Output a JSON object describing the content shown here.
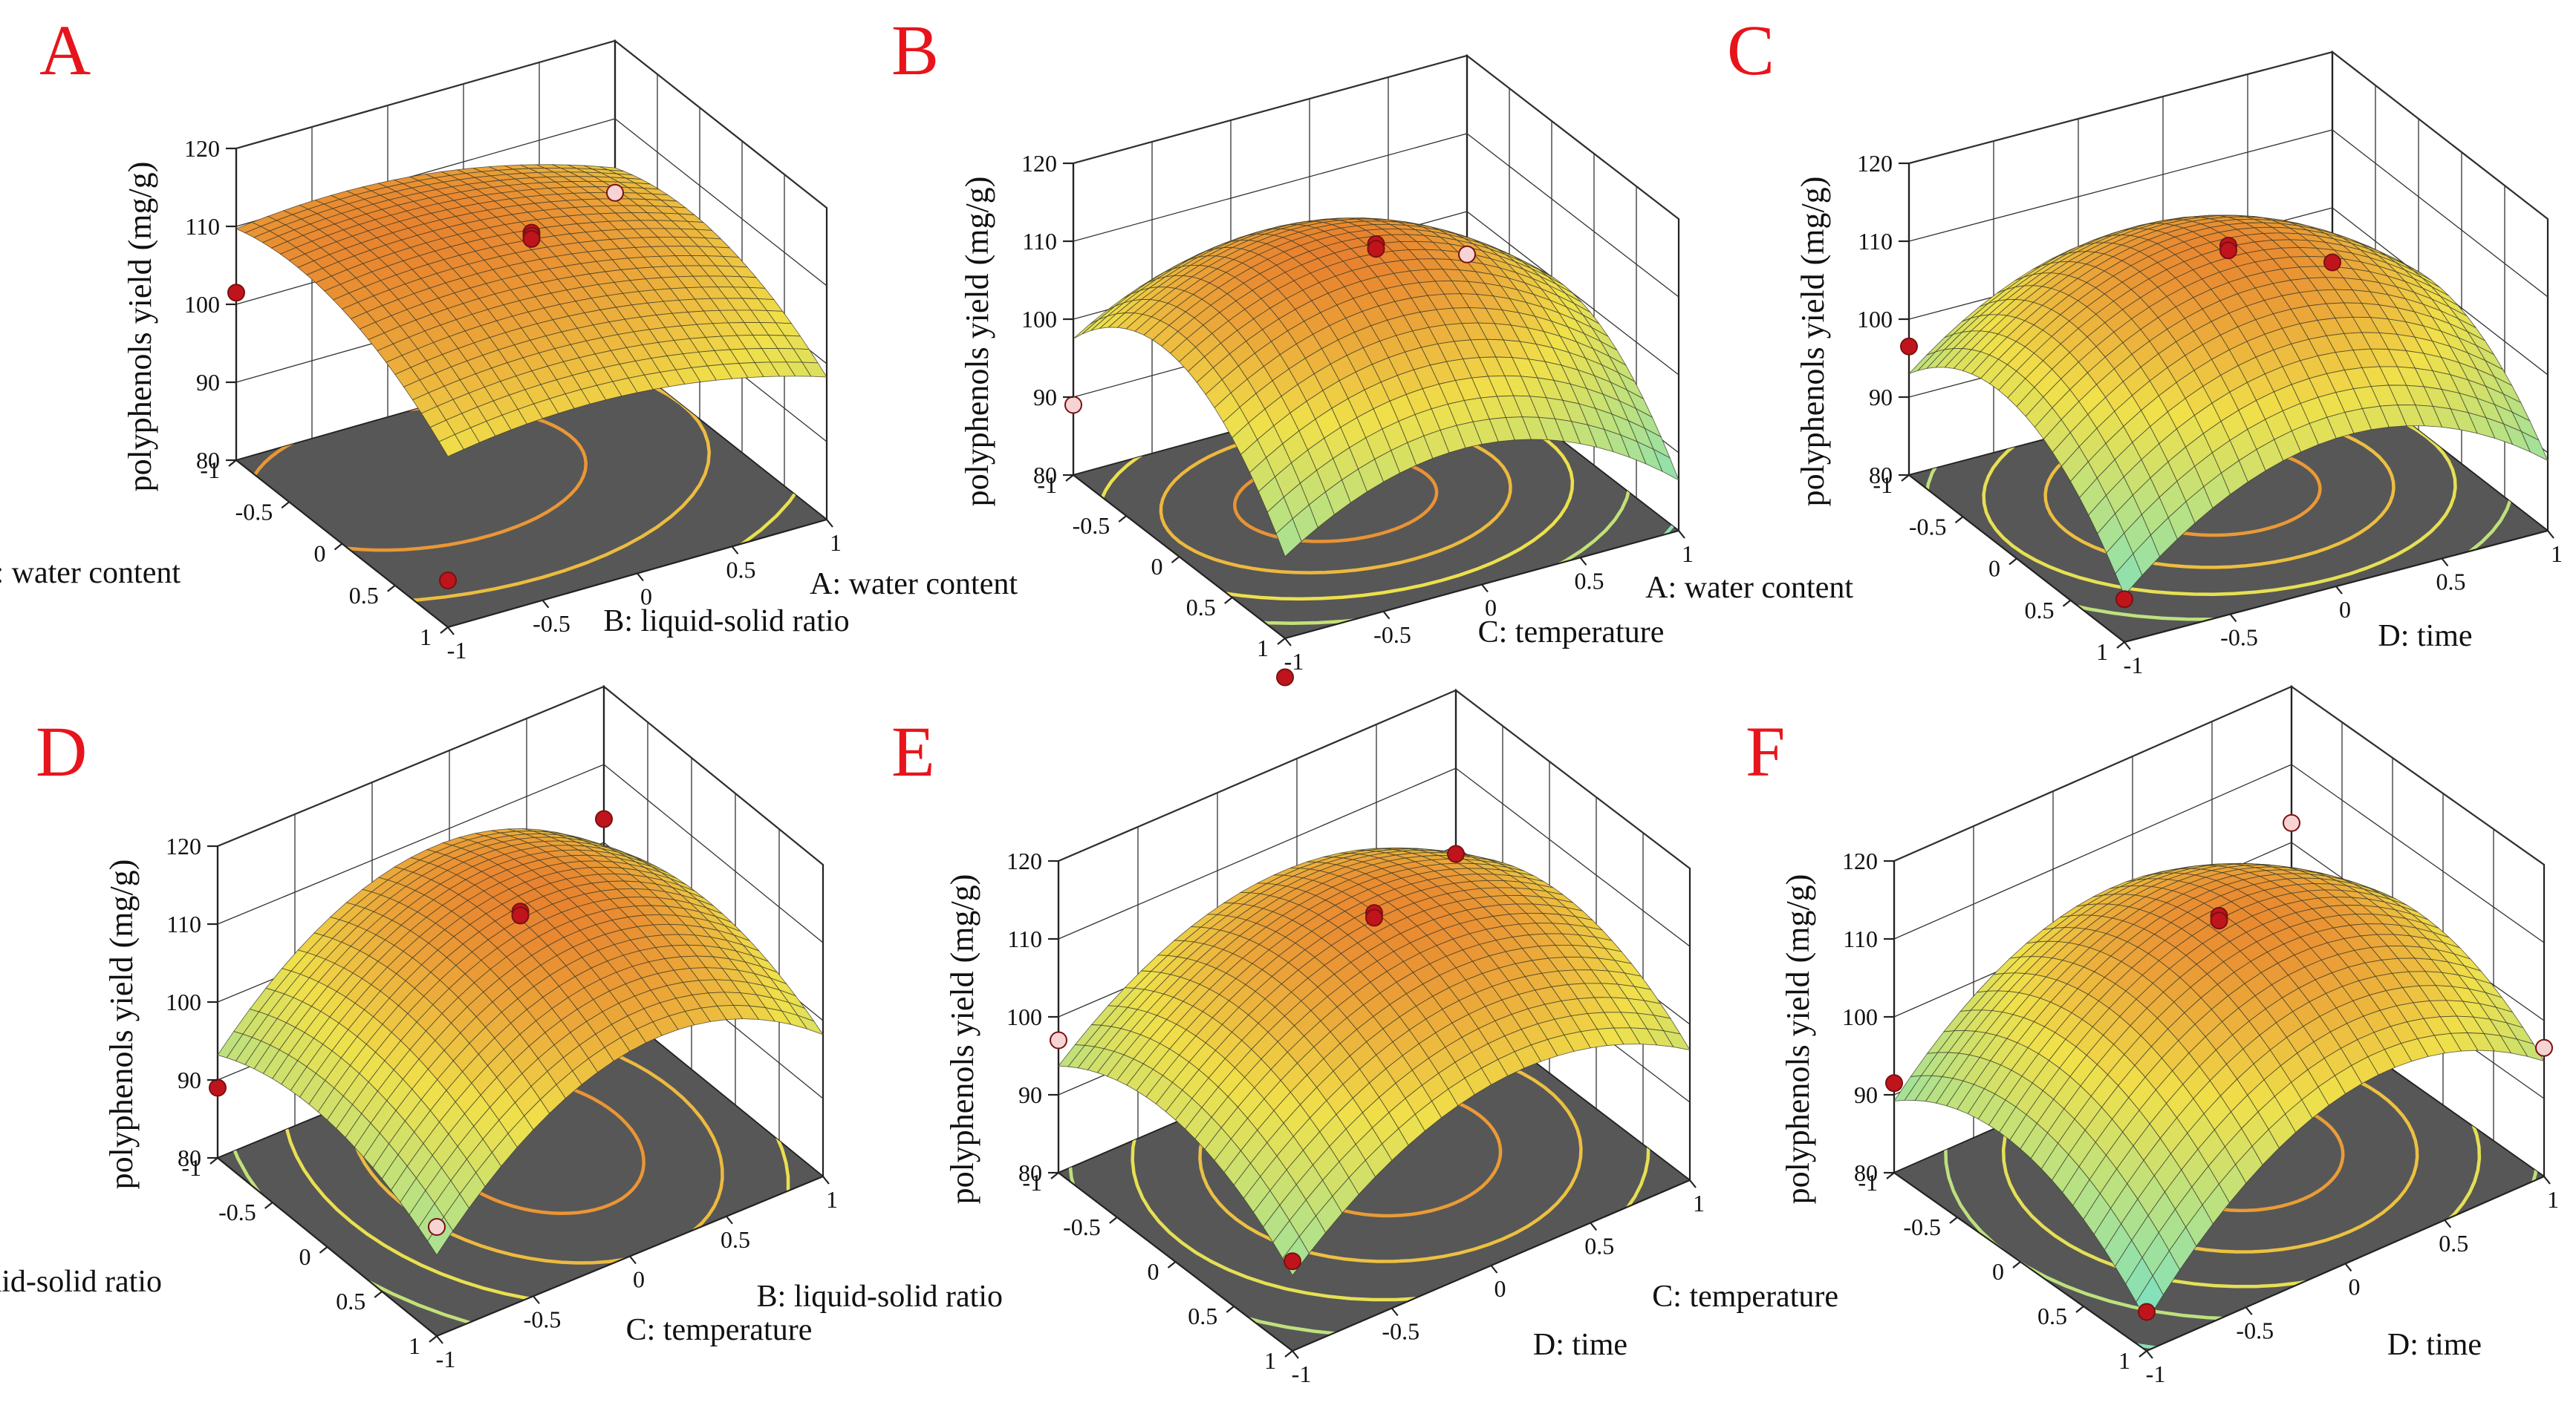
{
  "figure": {
    "colors": {
      "low": "#5ee2e0",
      "mid": "#f0e04a",
      "high": "#e23a1a",
      "design_point_dark": "#c0141c",
      "design_point_light": "#f6d4d4",
      "floor": "#575757",
      "panel_letter": "#e8141b"
    }
  },
  "chart_data": [
    {
      "panel": "A",
      "type": "surface",
      "zlabel": "polyphenols yield (mg/g)",
      "zlim": [
        80,
        120
      ],
      "z_ticks": [
        "80",
        "90",
        "100",
        "110",
        "120"
      ],
      "x_ticks": [
        "-1",
        "-0.5",
        "0",
        "0.5",
        "1"
      ],
      "y_ticks": [
        "-1",
        "-0.5",
        "0",
        "0.5",
        "1"
      ],
      "xlabel": "A: water content",
      "ylabel": "B: liquid-solid ratio",
      "surface": {
        "z0": 110.8,
        "ax": -3.3,
        "ay": -2.4,
        "bx": 4.3,
        "by": 3.1,
        "bxy": 0.6
      },
      "design_points": [
        {
          "x": -1,
          "y": -1,
          "z": 101.5,
          "style": "dark"
        },
        {
          "x": 1,
          "y": -1,
          "z": 86.0,
          "style": "dark"
        },
        {
          "x": -1,
          "y": 1,
          "z": 100.5,
          "style": "light"
        },
        {
          "x": 0,
          "y": 0,
          "z": 113.0,
          "style": "dark"
        },
        {
          "x": 0,
          "y": 0,
          "z": 112.6,
          "style": "dark"
        },
        {
          "x": 0,
          "y": 0,
          "z": 112.2,
          "style": "dark"
        }
      ]
    },
    {
      "panel": "B",
      "type": "surface",
      "zlabel": "polyphenols yield (mg/g)",
      "zlim": [
        80,
        120
      ],
      "z_ticks": [
        "80",
        "90",
        "100",
        "110",
        "120"
      ],
      "x_ticks": [
        "-1",
        "-0.5",
        "0",
        "0.5",
        "1"
      ],
      "y_ticks": [
        "-1",
        "-0.5",
        "0",
        "0.5",
        "1"
      ],
      "xlabel": "A: water content",
      "ylabel": "C: temperature",
      "surface": {
        "z0": 112.0,
        "ax": -3.0,
        "ay": -2.5,
        "bx": 11.0,
        "by": 9.5,
        "bxy": 0.5
      },
      "design_points": [
        {
          "x": -1,
          "y": -1,
          "z": 89.0,
          "style": "light"
        },
        {
          "x": 1,
          "y": -1,
          "z": 75.0,
          "style": "dark"
        },
        {
          "x": -1,
          "y": 1,
          "z": 94.5,
          "style": "light"
        },
        {
          "x": 0,
          "y": 0,
          "z": 113.2,
          "style": "dark"
        },
        {
          "x": 0,
          "y": 0,
          "z": 112.6,
          "style": "dark"
        }
      ]
    },
    {
      "panel": "C",
      "type": "surface",
      "zlabel": "polyphenols yield (mg/g)",
      "zlim": [
        80,
        120
      ],
      "z_ticks": [
        "80",
        "90",
        "100",
        "110",
        "120"
      ],
      "x_ticks": [
        "-1",
        "-0.5",
        "0",
        "0.5",
        "1"
      ],
      "y_ticks": [
        "-1",
        "-0.5",
        "0",
        "0.5",
        "1"
      ],
      "xlabel": "A: water content",
      "ylabel": "D: time",
      "surface": {
        "z0": 111.5,
        "ax": -2.5,
        "ay": 0.5,
        "bx": 10.0,
        "by": 11.5,
        "bxy": 1.0
      },
      "design_points": [
        {
          "x": -1,
          "y": -1,
          "z": 96.5,
          "style": "dark"
        },
        {
          "x": 1,
          "y": -1,
          "z": 85.5,
          "style": "dark"
        },
        {
          "x": -1,
          "y": 1,
          "z": 93.0,
          "style": "dark"
        },
        {
          "x": 0,
          "y": 0,
          "z": 113.0,
          "style": "dark"
        },
        {
          "x": 0,
          "y": 0,
          "z": 112.4,
          "style": "dark"
        }
      ]
    },
    {
      "panel": "D",
      "type": "surface",
      "zlabel": "polyphenols yield (mg/g)",
      "zlim": [
        80,
        120
      ],
      "z_ticks": [
        "80",
        "90",
        "100",
        "110",
        "120"
      ],
      "x_ticks": [
        "-1",
        "-0.5",
        "0",
        "0.5",
        "1"
      ],
      "y_ticks": [
        "-1",
        "-0.5",
        "0",
        "0.5",
        "1"
      ],
      "xlabel": "B: liquid-solid ratio",
      "ylabel": "C: temperature",
      "surface": {
        "z0": 111.8,
        "ax": -1.0,
        "ay": 3.5,
        "bx": 4.5,
        "by": 12.0,
        "bxy": 0.4
      },
      "design_points": [
        {
          "x": -1,
          "y": -1,
          "z": 89.0,
          "style": "dark"
        },
        {
          "x": 1,
          "y": -1,
          "z": 94.0,
          "style": "light"
        },
        {
          "x": -1,
          "y": 1,
          "z": 103.0,
          "style": "dark"
        },
        {
          "x": 0,
          "y": 0,
          "z": 112.8,
          "style": "dark"
        },
        {
          "x": 0,
          "y": 0,
          "z": 112.3,
          "style": "dark"
        }
      ]
    },
    {
      "panel": "E",
      "type": "surface",
      "zlabel": "polyphenols yield (mg/g)",
      "zlim": [
        80,
        120
      ],
      "z_ticks": [
        "80",
        "90",
        "100",
        "110",
        "120"
      ],
      "x_ticks": [
        "-1",
        "-0.5",
        "0",
        "0.5",
        "1"
      ],
      "y_ticks": [
        "-1",
        "-0.5",
        "0",
        "0.5",
        "1"
      ],
      "xlabel": "B: liquid-solid ratio",
      "ylabel": "D: time",
      "surface": {
        "z0": 111.2,
        "ax": -1.5,
        "ay": 3.0,
        "bx": 6.5,
        "by": 10.0,
        "bxy": 0.5
      },
      "design_points": [
        {
          "x": -1,
          "y": -1,
          "z": 97.0,
          "style": "light"
        },
        {
          "x": 1,
          "y": -1,
          "z": 91.5,
          "style": "dark"
        },
        {
          "x": -1,
          "y": 1,
          "z": 99.0,
          "style": "dark"
        },
        {
          "x": 0,
          "y": 0,
          "z": 113.8,
          "style": "dark"
        },
        {
          "x": 0,
          "y": 0,
          "z": 113.2,
          "style": "dark"
        }
      ]
    },
    {
      "panel": "F",
      "type": "surface",
      "zlabel": "polyphenols yield (mg/g)",
      "zlim": [
        80,
        120
      ],
      "z_ticks": [
        "80",
        "90",
        "100",
        "110",
        "120"
      ],
      "x_ticks": [
        "-1",
        "-0.5",
        "0",
        "0.5",
        "1"
      ],
      "y_ticks": [
        "-1",
        "-0.5",
        "0",
        "0.5",
        "1"
      ],
      "xlabel": "C: temperature",
      "ylabel": "D: time",
      "surface": {
        "z0": 111.0,
        "ax": -1.2,
        "ay": 4.0,
        "bx": 8.0,
        "by": 12.5,
        "bxy": 1.5
      },
      "design_points": [
        {
          "x": -1,
          "y": -1,
          "z": 91.5,
          "style": "dark"
        },
        {
          "x": 1,
          "y": -1,
          "z": 85.0,
          "style": "dark"
        },
        {
          "x": -1,
          "y": 1,
          "z": 102.5,
          "style": "light"
        },
        {
          "x": 1,
          "y": 1,
          "z": 96.5,
          "style": "light"
        },
        {
          "x": 0,
          "y": 0,
          "z": 113.2,
          "style": "dark"
        },
        {
          "x": 0,
          "y": 0,
          "z": 112.6,
          "style": "dark"
        }
      ]
    }
  ]
}
